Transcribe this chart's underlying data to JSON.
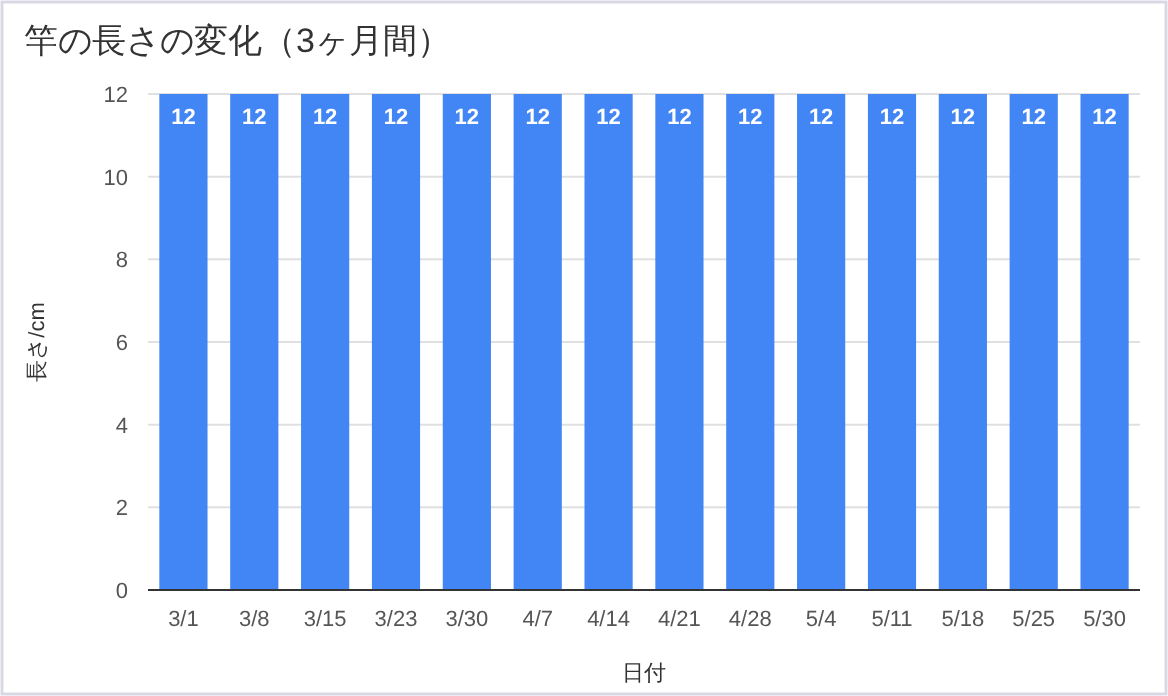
{
  "chart_data": {
    "type": "bar",
    "title": "竿の長さの変化（3ヶ月間）",
    "xlabel": "日付",
    "ylabel": "長さ/cm",
    "categories": [
      "3/1",
      "3/8",
      "3/15",
      "3/23",
      "3/30",
      "4/7",
      "4/14",
      "4/21",
      "4/28",
      "5/4",
      "5/11",
      "5/18",
      "5/25",
      "5/30"
    ],
    "values": [
      12,
      12,
      12,
      12,
      12,
      12,
      12,
      12,
      12,
      12,
      12,
      12,
      12,
      12
    ],
    "color": "#4285f4",
    "ylim": [
      0,
      12
    ],
    "yticks": [
      0,
      2,
      4,
      6,
      8,
      10,
      12
    ],
    "grid": "y",
    "data_labels": true
  }
}
